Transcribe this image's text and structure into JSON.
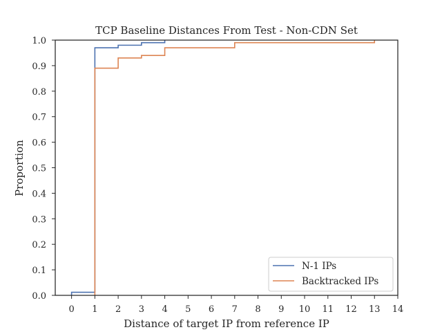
{
  "chart_data": {
    "type": "line",
    "step": true,
    "title": "TCP Baseline Distances From Test - Non-CDN Set",
    "xlabel": "Distance of target IP from reference IP",
    "ylabel": "Proportion",
    "xlim": [
      -0.7,
      14.0
    ],
    "ylim": [
      0.0,
      1.0
    ],
    "xticks": [
      "0",
      "1",
      "2",
      "3",
      "4",
      "5",
      "6",
      "7",
      "8",
      "9",
      "10",
      "11",
      "12",
      "13",
      "14"
    ],
    "yticks": [
      "0.0",
      "0.1",
      "0.2",
      "0.3",
      "0.4",
      "0.5",
      "0.6",
      "0.7",
      "0.8",
      "0.9",
      "1.0"
    ],
    "grid": false,
    "legend_position": "lower-right",
    "series": [
      {
        "name": "N-1 IPs",
        "color": "#4c72b0",
        "x": [
          0,
          1,
          2,
          3,
          4
        ],
        "y": [
          0.012,
          0.97,
          0.98,
          0.99,
          1.0
        ]
      },
      {
        "name": "Backtracked IPs",
        "color": "#dd8452",
        "x": [
          1,
          2,
          3,
          4,
          7,
          13
        ],
        "y": [
          0.89,
          0.93,
          0.94,
          0.97,
          0.99,
          1.0
        ]
      }
    ]
  }
}
